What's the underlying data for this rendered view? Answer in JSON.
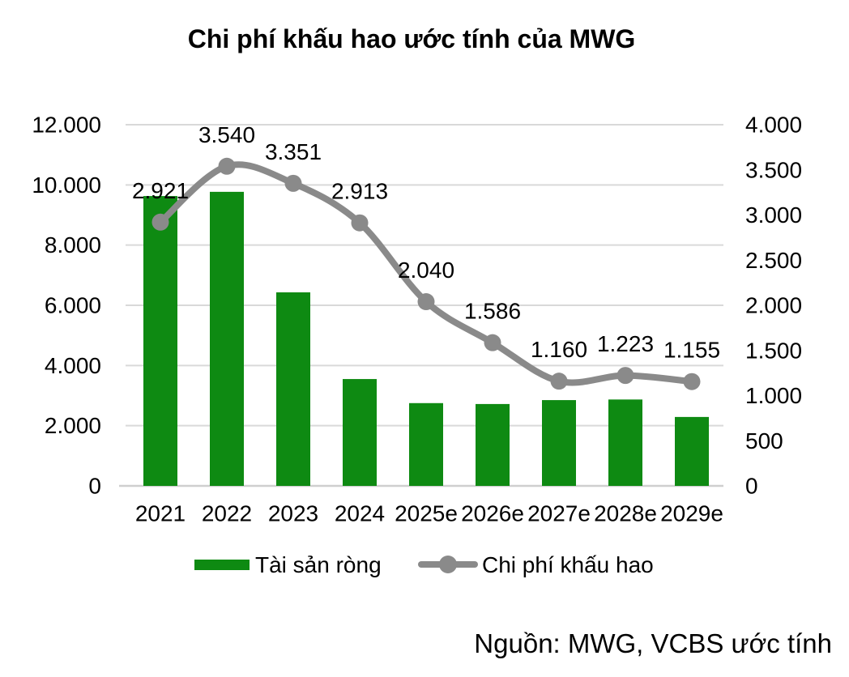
{
  "page": {
    "background": "#ffffff"
  },
  "chart_data": {
    "type": "combo-bar-line",
    "title": "Chi phí khấu hao ước tính của MWG",
    "source_note": "Nguồn: MWG, VCBS ước tính",
    "categories": [
      "2021",
      "2022",
      "2023",
      "2024",
      "2025e",
      "2026e",
      "2027e",
      "2028e",
      "2029e"
    ],
    "series": [
      {
        "name": "Tài sản ròng",
        "type": "bar",
        "axis": "left",
        "color": "#0e8a12",
        "values": [
          9630,
          9770,
          6430,
          3550,
          2750,
          2720,
          2850,
          2870,
          2290
        ]
      },
      {
        "name": "Chi phí khấu hao",
        "type": "line",
        "axis": "right",
        "color": "#8a8a8a",
        "marker_color": "#8a8a8a",
        "values": [
          2921,
          3540,
          3351,
          2913,
          2040,
          1586,
          1160,
          1223,
          1155
        ],
        "data_labels": [
          "2.921",
          "3.540",
          "3.351",
          "2.913",
          "2.040",
          "1.586",
          "1.160",
          "1.223",
          "1.155"
        ]
      }
    ],
    "left_axis": {
      "range": [
        0,
        12000
      ],
      "tick_values": [
        0,
        2000,
        4000,
        6000,
        8000,
        10000,
        12000
      ],
      "tick_labels": [
        "0",
        "2.000",
        "4.000",
        "6.000",
        "8.000",
        "10.000",
        "12.000"
      ]
    },
    "right_axis": {
      "range": [
        0,
        4000
      ],
      "tick_values": [
        0,
        500,
        1000,
        1500,
        2000,
        2500,
        3000,
        3500,
        4000
      ],
      "tick_labels": [
        "0",
        "500",
        "1.000",
        "1.500",
        "2.000",
        "2.500",
        "3.000",
        "3.500",
        "4.000"
      ]
    },
    "grid": true,
    "legend_position": "bottom",
    "colors": {
      "gridline": "#d9d9d9",
      "baseline": "#cfcfcf",
      "text": "#000000"
    }
  }
}
